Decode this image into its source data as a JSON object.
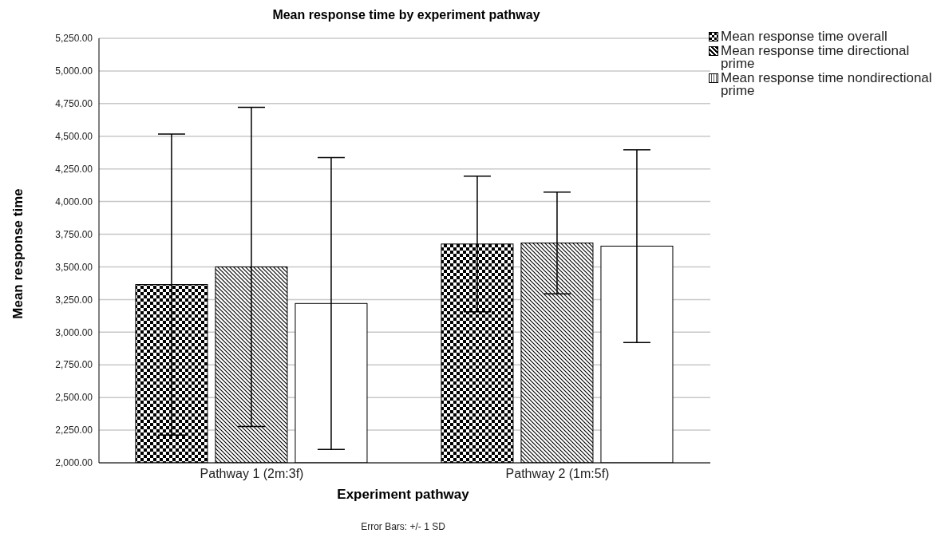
{
  "chart_data": {
    "type": "bar",
    "title": "Mean response time by experiment pathway",
    "xlabel": "Experiment pathway",
    "ylabel": "Mean response time",
    "categories": [
      "Pathway 1 (2m:3f)",
      "Pathway 2 (1m:5f)"
    ],
    "series": [
      {
        "name": "Mean response time overall",
        "color": "#000000",
        "values": [
          3365,
          3675
        ],
        "errors": [
          1152,
          519
        ]
      },
      {
        "name": "Mean response time directional prime",
        "color": "#000000",
        "values": [
          3500,
          3683
        ],
        "errors": [
          1222,
          390
        ]
      },
      {
        "name": "Mean response time nondirectional prime",
        "color": "#ffffff",
        "values": [
          3220,
          3659
        ],
        "errors": [
          1117,
          738
        ]
      }
    ],
    "ylim": [
      2000,
      5250
    ],
    "yticks": [
      {
        "value": 2000,
        "label": "2,000.00"
      },
      {
        "value": 2250,
        "label": "2,250.00"
      },
      {
        "value": 2500,
        "label": "2,500.00"
      },
      {
        "value": 2750,
        "label": "2,750.00"
      },
      {
        "value": 3000,
        "label": "3,000.00"
      },
      {
        "value": 3250,
        "label": "3,250.00"
      },
      {
        "value": 3500,
        "label": "3,500.00"
      },
      {
        "value": 3750,
        "label": "3,750.00"
      },
      {
        "value": 4000,
        "label": "4,000.00"
      },
      {
        "value": 4250,
        "label": "4,250.00"
      },
      {
        "value": 4500,
        "label": "4,500.00"
      },
      {
        "value": 4750,
        "label": "4,750.00"
      },
      {
        "value": 5000,
        "label": "5,000.00"
      },
      {
        "value": 5250,
        "label": "5,250.00"
      }
    ],
    "grid": "y",
    "legend": "top right",
    "annotations": [
      "Error Bars: +/- 1 SD"
    ]
  }
}
